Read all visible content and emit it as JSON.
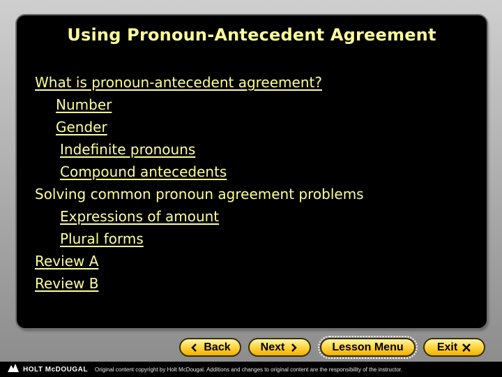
{
  "slide": {
    "title": "Using Pronoun-Antecedent Agreement",
    "items": [
      {
        "label": "What is pronoun-antecedent agreement? ",
        "link": true
      },
      {
        "label": "Number",
        "link": true
      },
      {
        "label": "Gender",
        "link": true
      },
      {
        "label": "Indefinite pronouns",
        "link": true
      },
      {
        "label": "Compound antecedents",
        "link": true
      },
      {
        "label": "Solving common pronoun agreement problems",
        "link": false
      },
      {
        "label": "Expressions of amount",
        "link": true
      },
      {
        "label": "Plural forms",
        "link": true
      },
      {
        "label": "Review A",
        "link": true
      },
      {
        "label": "Review B",
        "link": true
      }
    ]
  },
  "nav": {
    "back": "Back",
    "next": "Next",
    "lesson_menu": "Lesson Menu",
    "exit": "Exit"
  },
  "footer": {
    "brand": "HOLT McDOUGAL",
    "copyright": "Original content copyright by Holt McDougal.  Additions and changes to original content are the responsibility of the instructor."
  },
  "colors": {
    "text": "#ffff99",
    "panel": "#000000",
    "button": "#ffd84a"
  },
  "icons": {
    "back": "chevron-left-icon",
    "next": "chevron-right-icon",
    "exit": "x-icon",
    "logo": "holt-mcdougal-logo-icon"
  }
}
